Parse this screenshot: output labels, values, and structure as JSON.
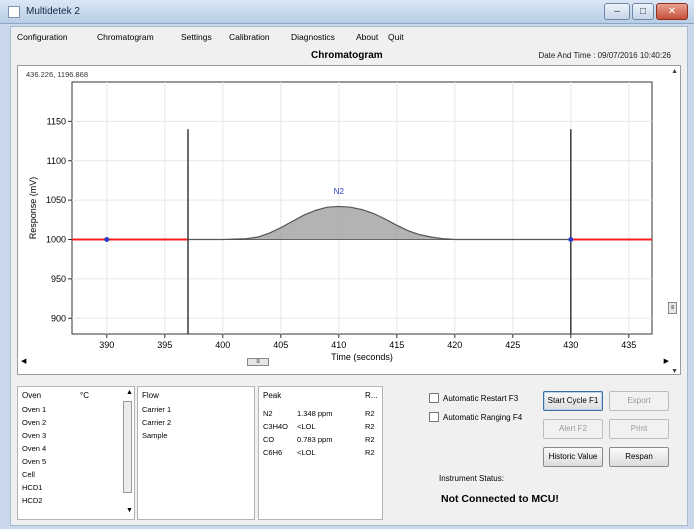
{
  "window": {
    "title": "Multidetek 2"
  },
  "menu": [
    "Configuration",
    "Chromatogram",
    "Settings",
    "Calibration",
    "Diagnostics",
    "About",
    "Quit"
  ],
  "header": {
    "chart_title": "Chromatogram",
    "datetime": "Date And Time : 09/07/2016 10:40:26",
    "cursor_readout": "436.226, 1196.868"
  },
  "chart_data": {
    "type": "area",
    "title": "Chromatogram",
    "xlabel": "Time (seconds)",
    "ylabel": "Response (mV)",
    "xlim": [
      387,
      437
    ],
    "ylim": [
      880,
      1200
    ],
    "x_ticks": [
      390,
      395,
      400,
      405,
      410,
      415,
      420,
      425,
      430,
      435
    ],
    "y_ticks": [
      900,
      950,
      1000,
      1050,
      1100,
      1150
    ],
    "grid": true,
    "baseline": 1000,
    "series": [
      {
        "name": "",
        "x": [
          396,
          400,
          402,
          403,
          404,
          405,
          406,
          407,
          408,
          409,
          410,
          411,
          412,
          413,
          414,
          415,
          416,
          417,
          418,
          419,
          420,
          422,
          430
        ],
        "y": [
          1000,
          1000,
          1001,
          1003,
          1008,
          1015,
          1023,
          1031,
          1037,
          1041,
          1042,
          1041,
          1038,
          1033,
          1026,
          1018,
          1011,
          1006,
          1003,
          1001,
          1000,
          1000,
          1000
        ]
      }
    ],
    "highlight_segments": [
      {
        "x": [
          387,
          397
        ],
        "y": 1000
      },
      {
        "x": [
          430,
          437
        ],
        "y": 1000
      }
    ],
    "markers": [
      {
        "x": 390,
        "y": 1000
      },
      {
        "x": 430,
        "y": 1000
      }
    ],
    "vlines": [
      397,
      430
    ],
    "annotations": [
      {
        "text": "N2",
        "x": 410,
        "y": 1058
      }
    ],
    "colors": {
      "highlight": "#ff1e1e",
      "curve": "#555555",
      "fill": "#9a9a9a",
      "marker": "#2b3fc7",
      "vline": "#3a3a3a",
      "grid": "#e6e6e6"
    }
  },
  "oven": {
    "headers": [
      "Oven",
      "°C"
    ],
    "rows": [
      "Oven 1",
      "Oven 2",
      "Oven 3",
      "Oven 4",
      "Oven 5",
      "Cell",
      "HCD1",
      "HCD2"
    ]
  },
  "flow": {
    "header": "Flow",
    "rows": [
      "Carrier 1",
      "Carrier 2",
      "Sample"
    ]
  },
  "peak": {
    "headers": [
      "Peak",
      "",
      "R..."
    ],
    "rows": [
      [
        "N2",
        "1.348 ppm",
        "R2"
      ],
      [
        "C3H4O",
        "<LOL",
        "R2"
      ],
      [
        "CO",
        "0.783 ppm",
        "R2"
      ],
      [
        "C6H6",
        "<LOL",
        "R2"
      ]
    ]
  },
  "options": {
    "auto_restart": "Automatic Restart F3",
    "auto_ranging": "Automatic Ranging F4"
  },
  "buttons": {
    "start_cycle": "Start Cycle F1",
    "export": "Export",
    "alert": "Alert F2",
    "print": "Print",
    "historic": "Historic Value",
    "respan": "Respan"
  },
  "status": {
    "label": "Instrument Status:",
    "value": "Not Connected to MCU!"
  }
}
